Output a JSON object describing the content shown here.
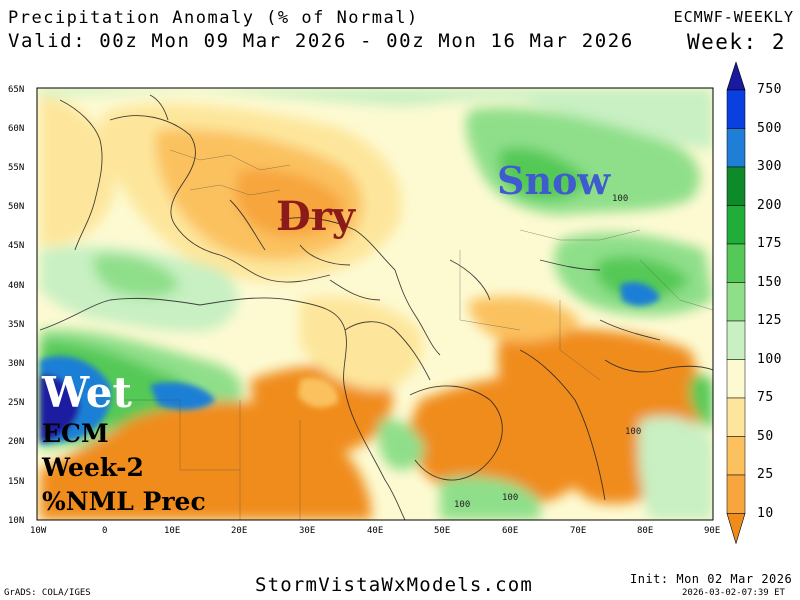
{
  "header": {
    "title": "Precipitation Anomaly (% of Normal)",
    "valid": "Valid: 00z Mon 09 Mar 2026 - 00z Mon 16 Mar 2026",
    "model": "ECMWF-WEEKLY",
    "week": "Week: 2"
  },
  "map": {
    "lat_labels": [
      "65N",
      "60N",
      "55N",
      "50N",
      "45N",
      "40N",
      "35N",
      "30N",
      "25N",
      "20N",
      "15N",
      "10N"
    ],
    "lon_labels": [
      "10W",
      "0",
      "10E",
      "20E",
      "30E",
      "40E",
      "50E",
      "60E",
      "70E",
      "80E",
      "90E"
    ],
    "contour_labels": [
      "100",
      "100",
      "100",
      "100"
    ],
    "annotations": {
      "dry": "Dry",
      "snow": "Snow",
      "wet": "Wet",
      "ecm": "ECM",
      "week2": "Week-2",
      "prec": "%NML Prec"
    }
  },
  "colorbar": {
    "levels": [
      "750",
      "500",
      "300",
      "200",
      "175",
      "150",
      "125",
      "100",
      "75",
      "50",
      "25",
      "10"
    ],
    "colors": [
      "#1a1aa0",
      "#0a3fe0",
      "#1f7fd6",
      "#0d8a2a",
      "#20ad3a",
      "#55c957",
      "#8fdf8a",
      "#c8f0c2",
      "#fdfad2",
      "#fde69b",
      "#fbc15f",
      "#f7a53c",
      "#f08c1a"
    ]
  },
  "footer": {
    "site": "StormVistaWxModels.com",
    "grads": "GrADS: COLA/IGES",
    "init": "Init: Mon 02 Mar 2026",
    "stamp": "2026-03-02-07:39 ET"
  }
}
